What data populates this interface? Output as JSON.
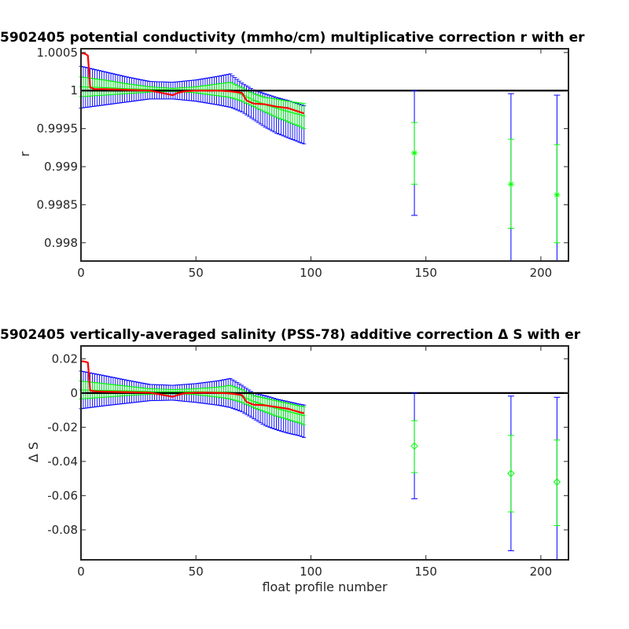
{
  "chart_data": [
    {
      "type": "line",
      "title": "5902405 potential conductivity (mmho/cm) multiplicative correction r with er",
      "xlabel": "",
      "ylabel": "r",
      "xlim": [
        0,
        212
      ],
      "ylim": [
        0.99776,
        1.00055
      ],
      "xticks": [
        0,
        50,
        100,
        150,
        200
      ],
      "xtick_labels": [
        "0",
        "50",
        "100",
        "150",
        "200"
      ],
      "yticks": [
        0.998,
        0.9985,
        0.999,
        0.9995,
        1,
        1.0005
      ],
      "ytick_labels": [
        "0.998",
        "0.9985",
        "0.999",
        "0.9995",
        "1",
        "1.0005"
      ],
      "colors": {
        "reference": "#000000",
        "fit": "#ff0000",
        "error_2sigma": "#0000ff",
        "error_1sigma": "#00ff00",
        "axes": "#262626"
      },
      "reference_line": 1,
      "marker": "asterisk",
      "series": [
        {
          "role": "fit",
          "x": [
            0,
            1,
            2,
            3,
            4,
            5,
            6,
            10,
            20,
            30,
            40,
            42,
            45,
            50,
            55,
            60,
            65,
            70,
            72,
            75,
            80,
            85,
            90,
            95,
            97
          ],
          "y": [
            1.00049,
            1.00049,
            1.00048,
            1.00046,
            1.00004,
            1.00003,
            1.00002,
            1.00002,
            1.00001,
            1.0,
            0.99994,
            0.99997,
            0.99999,
            1.0,
            1.0,
            1.0,
            0.99999,
            0.99997,
            0.99987,
            0.99983,
            0.99982,
            0.99979,
            0.99977,
            0.99972,
            0.9997
          ]
        },
        {
          "role": "error_2sigma",
          "x": [
            0,
            10,
            20,
            30,
            40,
            50,
            60,
            65,
            70,
            75,
            80,
            85,
            90,
            95,
            97
          ],
          "lower": [
            0.99977,
            0.99981,
            0.99985,
            0.99989,
            0.99989,
            0.99986,
            0.99981,
            0.99978,
            0.99972,
            0.99962,
            0.99952,
            0.99944,
            0.99938,
            0.99932,
            0.9993
          ],
          "upper": [
            1.00032,
            1.00025,
            1.00018,
            1.00012,
            1.00011,
            1.00014,
            1.00019,
            1.00022,
            1.0001,
            1.00001,
            0.99996,
            0.99991,
            0.99987,
            0.99982,
            0.9998
          ]
        },
        {
          "role": "error_1sigma",
          "x": [
            0,
            10,
            20,
            30,
            40,
            50,
            60,
            65,
            70,
            75,
            80,
            85,
            90,
            95,
            97
          ],
          "lower": [
            0.99992,
            0.99994,
            0.99996,
            0.99998,
            0.99999,
            0.99997,
            0.99993,
            0.99991,
            0.99986,
            0.99979,
            0.99972,
            0.99965,
            0.99959,
            0.99953,
            0.9995
          ],
          "upper": [
            1.00018,
            1.00014,
            1.00009,
            1.00005,
            1.00003,
            1.00005,
            1.00009,
            1.00011,
            1.00004,
            0.99996,
            0.99991,
            0.99989,
            0.99986,
            0.99984,
            0.99983
          ]
        },
        {
          "role": "points",
          "x": [
            145,
            187,
            207
          ],
          "y": [
            0.99918,
            0.99877,
            0.99863
          ],
          "lower_2sigma": [
            0.99836,
            0.99776,
            0.99776
          ],
          "upper_2sigma": [
            1.0,
            0.99996,
            0.99994
          ],
          "lower_1sigma": [
            0.99877,
            0.99819,
            0.998
          ],
          "upper_1sigma": [
            0.99958,
            0.99936,
            0.99929
          ]
        }
      ]
    },
    {
      "type": "line",
      "title": "5902405 vertically-averaged salinity (PSS-78) additive correction Δ S with er",
      "xlabel": "float profile number",
      "ylabel": "Δ S",
      "xlim": [
        0,
        212
      ],
      "ylim": [
        -0.0975,
        0.0275
      ],
      "xticks": [
        0,
        50,
        100,
        150,
        200
      ],
      "xtick_labels": [
        "0",
        "50",
        "100",
        "150",
        "200"
      ],
      "yticks": [
        -0.08,
        -0.06,
        -0.04,
        -0.02,
        0,
        0.02
      ],
      "ytick_labels": [
        "-0.08",
        "-0.06",
        "-0.04",
        "-0.02",
        "0",
        "0.02"
      ],
      "colors": {
        "reference": "#000000",
        "fit": "#ff0000",
        "error_2sigma": "#0000ff",
        "error_1sigma": "#00ff00",
        "axes": "#262626"
      },
      "reference_line": 0,
      "marker": "diamond",
      "series": [
        {
          "role": "fit",
          "x": [
            0,
            1,
            2,
            3,
            4,
            5,
            6,
            10,
            20,
            30,
            40,
            42,
            45,
            50,
            55,
            60,
            65,
            70,
            72,
            75,
            80,
            85,
            90,
            95,
            97
          ],
          "y": [
            0.0185,
            0.0185,
            0.0182,
            0.0178,
            0.0015,
            0.0012,
            0.001,
            0.0008,
            0.0005,
            0.0002,
            -0.0022,
            -0.0012,
            -0.0002,
            0.0002,
            0.0002,
            0.0001,
            -0.0003,
            -0.0012,
            -0.0052,
            -0.0068,
            -0.0072,
            -0.0082,
            -0.0092,
            -0.0112,
            -0.0118
          ]
        },
        {
          "role": "error_2sigma",
          "x": [
            0,
            10,
            20,
            30,
            40,
            50,
            60,
            65,
            70,
            75,
            80,
            85,
            90,
            95,
            97
          ],
          "lower": [
            -0.0092,
            -0.0075,
            -0.006,
            -0.0045,
            -0.0042,
            -0.0055,
            -0.0072,
            -0.0085,
            -0.011,
            -0.015,
            -0.019,
            -0.0215,
            -0.0235,
            -0.025,
            -0.026
          ],
          "upper": [
            0.0128,
            0.0102,
            0.0075,
            0.005,
            0.0045,
            0.0055,
            0.0072,
            0.0085,
            0.0045,
            0.0,
            -0.0015,
            -0.0035,
            -0.005,
            -0.0065,
            -0.007
          ]
        },
        {
          "role": "error_1sigma",
          "x": [
            0,
            10,
            20,
            30,
            40,
            50,
            60,
            65,
            70,
            75,
            80,
            85,
            90,
            95,
            97
          ],
          "lower": [
            -0.0035,
            -0.0025,
            -0.0015,
            -0.0008,
            -0.0005,
            -0.001,
            -0.0025,
            -0.0035,
            -0.0055,
            -0.0085,
            -0.011,
            -0.0135,
            -0.0155,
            -0.0175,
            -0.0185
          ],
          "upper": [
            0.007,
            0.0055,
            0.004,
            0.0025,
            0.002,
            0.0025,
            0.0035,
            0.0045,
            0.002,
            -0.0015,
            -0.003,
            -0.0045,
            -0.006,
            -0.0075,
            -0.008
          ]
        },
        {
          "role": "points",
          "x": [
            145,
            187,
            207
          ],
          "y": [
            -0.031,
            -0.047,
            -0.052
          ],
          "lower_2sigma": [
            -0.0618,
            -0.0922,
            -0.0975
          ],
          "upper_2sigma": [
            0.0,
            -0.0018,
            -0.0025
          ],
          "lower_1sigma": [
            -0.0465,
            -0.0695,
            -0.0775
          ],
          "upper_1sigma": [
            -0.0162,
            -0.0248,
            -0.0275
          ]
        }
      ]
    }
  ]
}
